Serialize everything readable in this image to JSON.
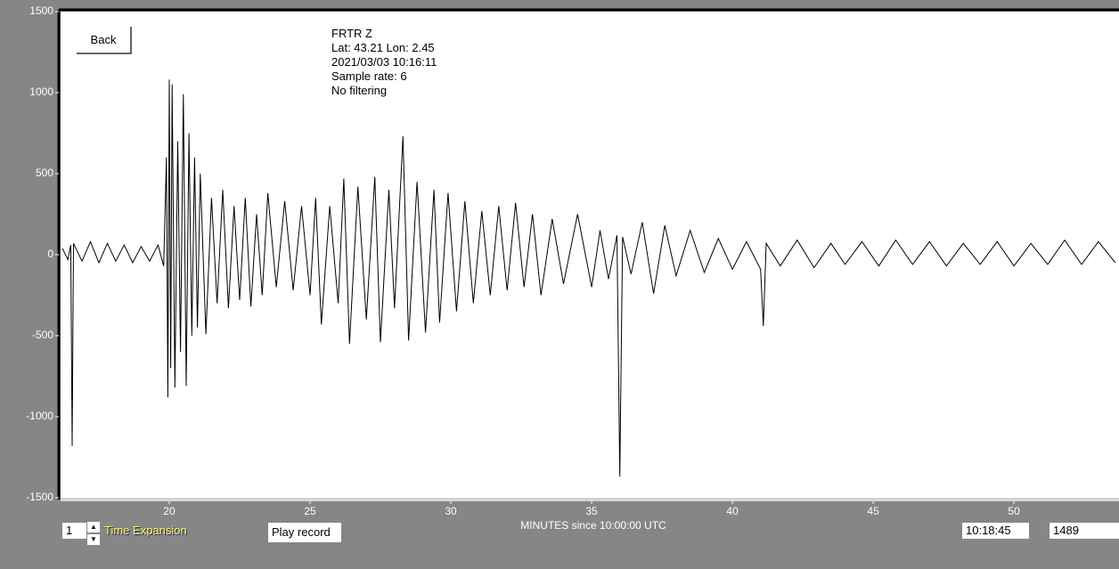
{
  "chart_data": {
    "type": "line",
    "xlabel": "MINUTES since 10:00:00 UTC",
    "x": [
      16.2,
      16.4,
      16.5,
      16.55,
      16.6,
      16.9,
      17.2,
      17.5,
      17.8,
      18.1,
      18.4,
      18.7,
      19.0,
      19.3,
      19.6,
      19.8,
      19.9,
      19.95,
      20.0,
      20.05,
      20.1,
      20.2,
      20.3,
      20.4,
      20.5,
      20.6,
      20.7,
      20.8,
      20.9,
      21.0,
      21.1,
      21.3,
      21.5,
      21.7,
      21.9,
      22.1,
      22.3,
      22.5,
      22.7,
      22.9,
      23.1,
      23.3,
      23.5,
      23.8,
      24.1,
      24.4,
      24.7,
      25.0,
      25.2,
      25.4,
      25.7,
      26.0,
      26.2,
      26.4,
      26.7,
      27.0,
      27.3,
      27.5,
      27.8,
      28.0,
      28.3,
      28.5,
      28.8,
      29.1,
      29.4,
      29.6,
      29.9,
      30.2,
      30.5,
      30.8,
      31.1,
      31.4,
      31.7,
      32.0,
      32.3,
      32.6,
      32.9,
      33.2,
      33.6,
      34.0,
      34.5,
      35.0,
      35.3,
      35.6,
      35.9,
      36.0,
      36.1,
      36.4,
      36.8,
      37.2,
      37.6,
      38.0,
      38.5,
      39.0,
      39.5,
      40.0,
      40.5,
      41.0,
      41.1,
      41.2,
      41.7,
      42.3,
      42.9,
      43.5,
      44.0,
      44.6,
      45.2,
      45.8,
      46.4,
      47.0,
      47.6,
      48.2,
      48.8,
      49.4,
      50.0,
      50.6,
      51.2,
      51.8,
      52.4,
      53.0,
      53.6
    ],
    "series": [
      {
        "color": "#000000",
        "values": [
          40,
          -30,
          60,
          -1180,
          70,
          -40,
          80,
          -50,
          70,
          -40,
          60,
          -50,
          50,
          -40,
          60,
          -70,
          600,
          -880,
          1080,
          -700,
          1050,
          -820,
          700,
          -600,
          990,
          -810,
          750,
          -500,
          600,
          -450,
          500,
          -490,
          350,
          -300,
          400,
          -330,
          300,
          -280,
          350,
          -320,
          250,
          -250,
          380,
          -200,
          330,
          -220,
          300,
          -250,
          350,
          -430,
          300,
          -300,
          470,
          -550,
          420,
          -400,
          480,
          -540,
          400,
          -330,
          730,
          -530,
          450,
          -480,
          400,
          -420,
          380,
          -350,
          330,
          -300,
          270,
          -250,
          300,
          -220,
          320,
          -200,
          250,
          -250,
          220,
          -180,
          250,
          -200,
          150,
          -150,
          120,
          -1370,
          110,
          -120,
          200,
          -240,
          180,
          -130,
          150,
          -110,
          100,
          -90,
          80,
          -90,
          -440,
          70,
          -70,
          90,
          -80,
          70,
          -60,
          80,
          -70,
          90,
          -60,
          80,
          -70,
          70,
          -60,
          80,
          -70,
          70,
          -60,
          90,
          -60,
          80,
          -50
        ]
      }
    ],
    "xlim": [
      16.14,
      53.73
    ],
    "ylim": [
      -1500,
      1500
    ],
    "xticks": [
      20,
      25,
      30,
      35,
      40,
      45,
      50
    ],
    "yticks": [
      1500,
      1000,
      500,
      0,
      -500,
      -1000,
      -1500
    ]
  },
  "info": [
    "FRTR  Z",
    "Lat: 43.21 Lon: 2.45",
    "2021/03/03 10:16:11",
    "Sample rate: 6",
    "No filtering"
  ],
  "controls": {
    "back": "Back",
    "expansion_value": "1",
    "expansion_label": "Time Expansion",
    "play": "Play record",
    "time": "10:18:45",
    "count": "1489"
  }
}
